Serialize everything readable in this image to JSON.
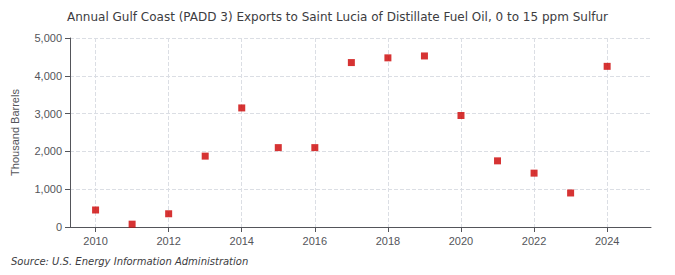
{
  "chart_data": {
    "type": "scatter",
    "title": "Annual Gulf Coast (PADD 3) Exports to Saint Lucia of Distillate Fuel Oil, 0 to 15 ppm Sulfur",
    "ylabel": "Thousand Barrels",
    "source": "Source: U.S. Energy Information Administration",
    "x": [
      2010,
      2011,
      2012,
      2013,
      2014,
      2015,
      2016,
      2017,
      2018,
      2019,
      2020,
      2021,
      2022,
      2023,
      2024
    ],
    "values": [
      450,
      75,
      350,
      1875,
      3150,
      2100,
      2100,
      4350,
      4475,
      4525,
      2950,
      1750,
      1425,
      900,
      4250
    ],
    "color": "#cc0000",
    "marker": "square",
    "xlim": [
      2009.3,
      2025.2
    ],
    "xticks": [
      2010,
      2012,
      2014,
      2016,
      2018,
      2020,
      2022,
      2024
    ],
    "ylim": [
      0,
      5000
    ],
    "yticks": [
      0,
      {
        "value": 1000,
        "label": "1,000"
      },
      {
        "value": 2000,
        "label": "2,000"
      },
      {
        "value": 3000,
        "label": "3,000"
      },
      {
        "value": 4000,
        "label": "4,000"
      },
      {
        "value": 5000,
        "label": "5,000"
      }
    ],
    "grid": true
  }
}
